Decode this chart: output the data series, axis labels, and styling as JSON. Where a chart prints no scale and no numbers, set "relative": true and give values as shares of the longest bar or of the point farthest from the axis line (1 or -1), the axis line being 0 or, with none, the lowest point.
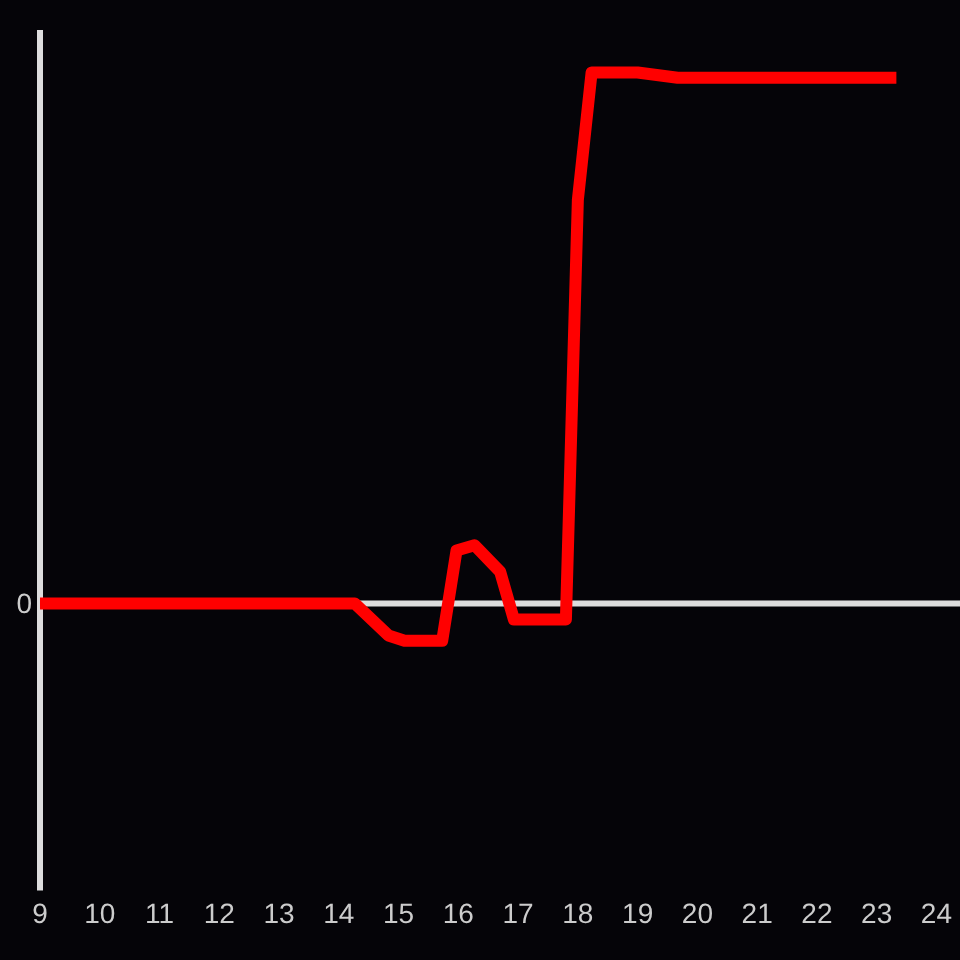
{
  "chart_data": {
    "type": "line",
    "relative": true,
    "x": [
      9,
      14.27,
      14.83,
      15.1,
      15.73,
      15.97,
      16.27,
      16.7,
      16.93,
      17.8,
      18.0,
      18.23,
      19.0,
      19.67,
      23.33
    ],
    "values": [
      0,
      0,
      -0.06,
      -0.07,
      -0.07,
      0.1,
      0.11,
      0.06,
      -0.03,
      -0.03,
      0.76,
      1,
      1,
      0.99,
      0.99
    ],
    "color": "#ff0000",
    "xlim": [
      9,
      24
    ],
    "xticks": [
      9,
      10,
      11,
      12,
      13,
      14,
      15,
      16,
      17,
      18,
      19,
      20,
      21,
      22,
      23,
      24
    ],
    "ref_lines": [
      {
        "axis": "y",
        "value": 0,
        "label": "0"
      }
    ]
  }
}
